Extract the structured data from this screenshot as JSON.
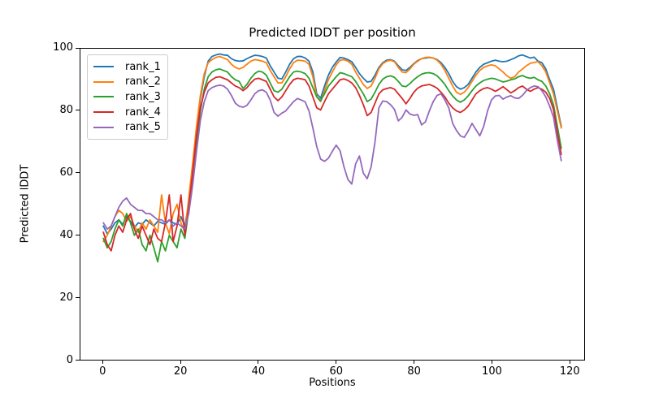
{
  "chart_data": {
    "type": "line",
    "title": "Predicted lDDT per position",
    "xlabel": "Positions",
    "ylabel": "Predicted lDDT",
    "xlim": [
      -5.9,
      123.9
    ],
    "ylim": [
      0,
      100
    ],
    "xticks": [
      0,
      20,
      40,
      60,
      80,
      100,
      120
    ],
    "yticks": [
      0,
      20,
      40,
      60,
      80,
      100
    ],
    "grid": false,
    "legend_position": "upper left",
    "x": [
      0,
      1,
      2,
      3,
      4,
      5,
      6,
      7,
      8,
      9,
      10,
      11,
      12,
      13,
      14,
      15,
      16,
      17,
      18,
      19,
      20,
      21,
      22,
      23,
      24,
      25,
      26,
      27,
      28,
      29,
      30,
      31,
      32,
      33,
      34,
      35,
      36,
      37,
      38,
      39,
      40,
      41,
      42,
      43,
      44,
      45,
      46,
      47,
      48,
      49,
      50,
      51,
      52,
      53,
      54,
      55,
      56,
      57,
      58,
      59,
      60,
      61,
      62,
      63,
      64,
      65,
      66,
      67,
      68,
      69,
      70,
      71,
      72,
      73,
      74,
      75,
      76,
      77,
      78,
      79,
      80,
      81,
      82,
      83,
      84,
      85,
      86,
      87,
      88,
      89,
      90,
      91,
      92,
      93,
      94,
      95,
      96,
      97,
      98,
      99,
      100,
      101,
      102,
      103,
      104,
      105,
      106,
      107,
      108,
      109,
      110,
      111,
      112,
      113,
      114,
      115,
      116,
      117,
      118
    ],
    "series": [
      {
        "name": "rank_1",
        "color": "#1f77b4",
        "values": [
          43,
          40.5,
          42,
          44,
          45,
          43.5,
          46,
          44.5,
          42.5,
          44,
          43.5,
          45,
          44,
          43,
          44.5,
          44,
          43.5,
          45,
          44,
          43.5,
          46,
          43,
          50,
          62,
          74,
          84,
          91,
          96,
          97.5,
          98,
          98.3,
          98,
          97.9,
          96.8,
          96.2,
          96,
          96.1,
          96.8,
          97.4,
          97.9,
          97.8,
          97.5,
          97,
          94.5,
          92.5,
          90.5,
          90.3,
          92.5,
          95,
          96.8,
          97.5,
          97.5,
          97,
          96,
          92.5,
          85.5,
          84.1,
          88,
          91.5,
          94,
          95.7,
          97.2,
          97,
          96.5,
          95.8,
          94,
          92,
          90.5,
          89.3,
          89.5,
          91.5,
          94,
          95.5,
          96.3,
          96.5,
          96,
          94.5,
          93.2,
          93,
          94,
          95.2,
          96.2,
          96.8,
          97,
          97.2,
          97,
          96.5,
          95.5,
          94,
          92,
          89.5,
          87.8,
          87,
          87.5,
          88.5,
          90.5,
          92.5,
          94,
          95,
          95.5,
          96,
          96.3,
          96,
          95.8,
          96,
          96.5,
          97,
          97.7,
          98,
          97.5,
          97,
          97.3,
          96,
          95.5,
          93.5,
          90,
          87,
          81,
          75
        ]
      },
      {
        "name": "rank_2",
        "color": "#ff7f0e",
        "values": [
          38,
          40,
          43,
          46,
          48,
          47,
          44.5,
          46,
          43,
          41,
          44,
          42,
          45,
          43,
          41,
          53,
          44,
          40.5,
          47,
          50,
          44,
          41,
          52,
          63,
          75,
          85,
          92,
          95.5,
          96.5,
          97.2,
          97.5,
          97,
          96.5,
          95,
          94,
          93.5,
          94,
          95,
          96,
          96.5,
          96.3,
          96,
          95.5,
          93,
          91,
          89,
          89,
          91,
          93.5,
          95.5,
          96.3,
          96.2,
          96,
          95,
          91,
          84.5,
          83,
          86.5,
          90,
          92.5,
          94.8,
          96.3,
          96.5,
          96,
          95,
          92.5,
          90.5,
          88.5,
          87.2,
          88,
          90.5,
          93.5,
          95.2,
          96,
          96.3,
          95.8,
          94,
          92.5,
          92.3,
          93.5,
          95,
          96,
          96.8,
          97.2,
          97.3,
          97,
          96.3,
          95,
          93,
          90.5,
          88,
          86,
          85.3,
          86,
          87.5,
          89.5,
          91.5,
          93,
          94,
          94.5,
          94.8,
          94.5,
          93.5,
          92.5,
          91.3,
          90.5,
          91,
          92.5,
          93.5,
          94.5,
          95.3,
          95.6,
          95.8,
          94.5,
          92.5,
          89,
          85.5,
          80,
          74.5
        ]
      },
      {
        "name": "rank_3",
        "color": "#2ca02c",
        "values": [
          39,
          36,
          38,
          42,
          45,
          43,
          47,
          44,
          40,
          42,
          37,
          35,
          40,
          36,
          31.5,
          38,
          35,
          40,
          38,
          36,
          42,
          39,
          48,
          58,
          70,
          80,
          87,
          91,
          92.5,
          93.2,
          93.5,
          93,
          92.5,
          91,
          90,
          89.5,
          87.2,
          88.5,
          90.5,
          92,
          92.8,
          92.5,
          91.5,
          89,
          86.5,
          86,
          87,
          89,
          91,
          92.5,
          92.8,
          92.5,
          92,
          90.5,
          87.5,
          84.5,
          83.3,
          85.5,
          88,
          89.5,
          91,
          92.3,
          92,
          91.5,
          91,
          89.5,
          87.5,
          85.5,
          83,
          83.8,
          86,
          88.5,
          90.2,
          91,
          91.3,
          90.8,
          89.5,
          88,
          87.8,
          88.8,
          90,
          91,
          91.8,
          92.2,
          92.3,
          92,
          91.3,
          90,
          88.5,
          86.5,
          84.8,
          83.5,
          82.8,
          83.5,
          84.8,
          86.5,
          88,
          89,
          89.8,
          90.2,
          90.5,
          90.3,
          89.8,
          89.3,
          89.6,
          90,
          90.3,
          91,
          91.4,
          90.8,
          90.5,
          90.8,
          90,
          89.5,
          88,
          85.5,
          82,
          75,
          68
        ]
      },
      {
        "name": "rank_4",
        "color": "#d62728",
        "values": [
          41,
          37,
          35,
          40,
          43,
          41,
          45,
          47,
          42,
          39,
          43,
          40,
          37,
          42,
          39,
          38,
          44,
          53,
          38,
          43,
          53,
          40,
          49,
          60,
          72,
          81,
          86,
          89,
          90,
          90.8,
          91,
          90.5,
          90,
          89,
          88,
          87.5,
          86.5,
          87.5,
          89,
          90.2,
          90.5,
          90,
          89.5,
          87,
          84.5,
          83.3,
          84.5,
          86.5,
          88.5,
          90,
          90.5,
          90.3,
          90,
          88,
          84.5,
          81,
          80.3,
          83,
          85.5,
          87,
          88.5,
          90,
          90.3,
          89.8,
          89,
          87.5,
          85,
          82,
          78.5,
          79.5,
          82.5,
          85.5,
          86.8,
          87.2,
          87.5,
          87,
          85.5,
          84,
          82.3,
          84,
          86,
          87.3,
          88,
          88.3,
          88.5,
          88,
          87.3,
          86,
          84.5,
          82.5,
          81,
          80,
          79.5,
          80.3,
          81.5,
          83.5,
          85.5,
          86.5,
          87.2,
          87.5,
          87,
          86.3,
          87,
          87.8,
          86.8,
          85.8,
          86.5,
          87.5,
          88,
          87,
          86.3,
          87,
          87.5,
          87,
          86,
          84,
          80.5,
          73,
          66
        ]
      },
      {
        "name": "rank_5",
        "color": "#9467bd",
        "values": [
          44,
          42,
          43,
          46,
          49,
          51,
          52,
          50,
          49,
          48,
          48,
          47,
          47,
          46,
          45,
          45,
          44,
          45,
          43,
          44,
          43,
          42,
          47,
          56,
          67,
          77,
          83,
          86.5,
          87.5,
          88,
          88.3,
          88,
          87,
          85,
          82.5,
          81.5,
          81.2,
          81.8,
          83.5,
          85.5,
          86.5,
          86.8,
          86,
          83.5,
          79.5,
          78.3,
          79.3,
          80,
          81.5,
          83,
          84,
          83.5,
          82.9,
          80,
          74.5,
          68.5,
          64.5,
          63.8,
          64.8,
          67,
          69,
          67.2,
          62,
          58,
          56.5,
          63,
          65.5,
          60,
          58.2,
          62,
          70,
          81,
          83.2,
          83,
          82,
          80.5,
          76.8,
          78,
          80.3,
          79,
          78.6,
          78.8,
          75.5,
          76.5,
          80,
          83,
          85,
          85.5,
          83.5,
          81,
          76,
          73.7,
          72,
          71.5,
          73.5,
          76,
          74,
          72,
          75,
          80,
          83.5,
          84.8,
          85,
          83.8,
          84.5,
          84.9,
          84.2,
          84,
          85,
          86.5,
          87.5,
          88,
          87.8,
          86.5,
          84.5,
          81.5,
          78,
          70.5,
          64
        ]
      }
    ]
  }
}
